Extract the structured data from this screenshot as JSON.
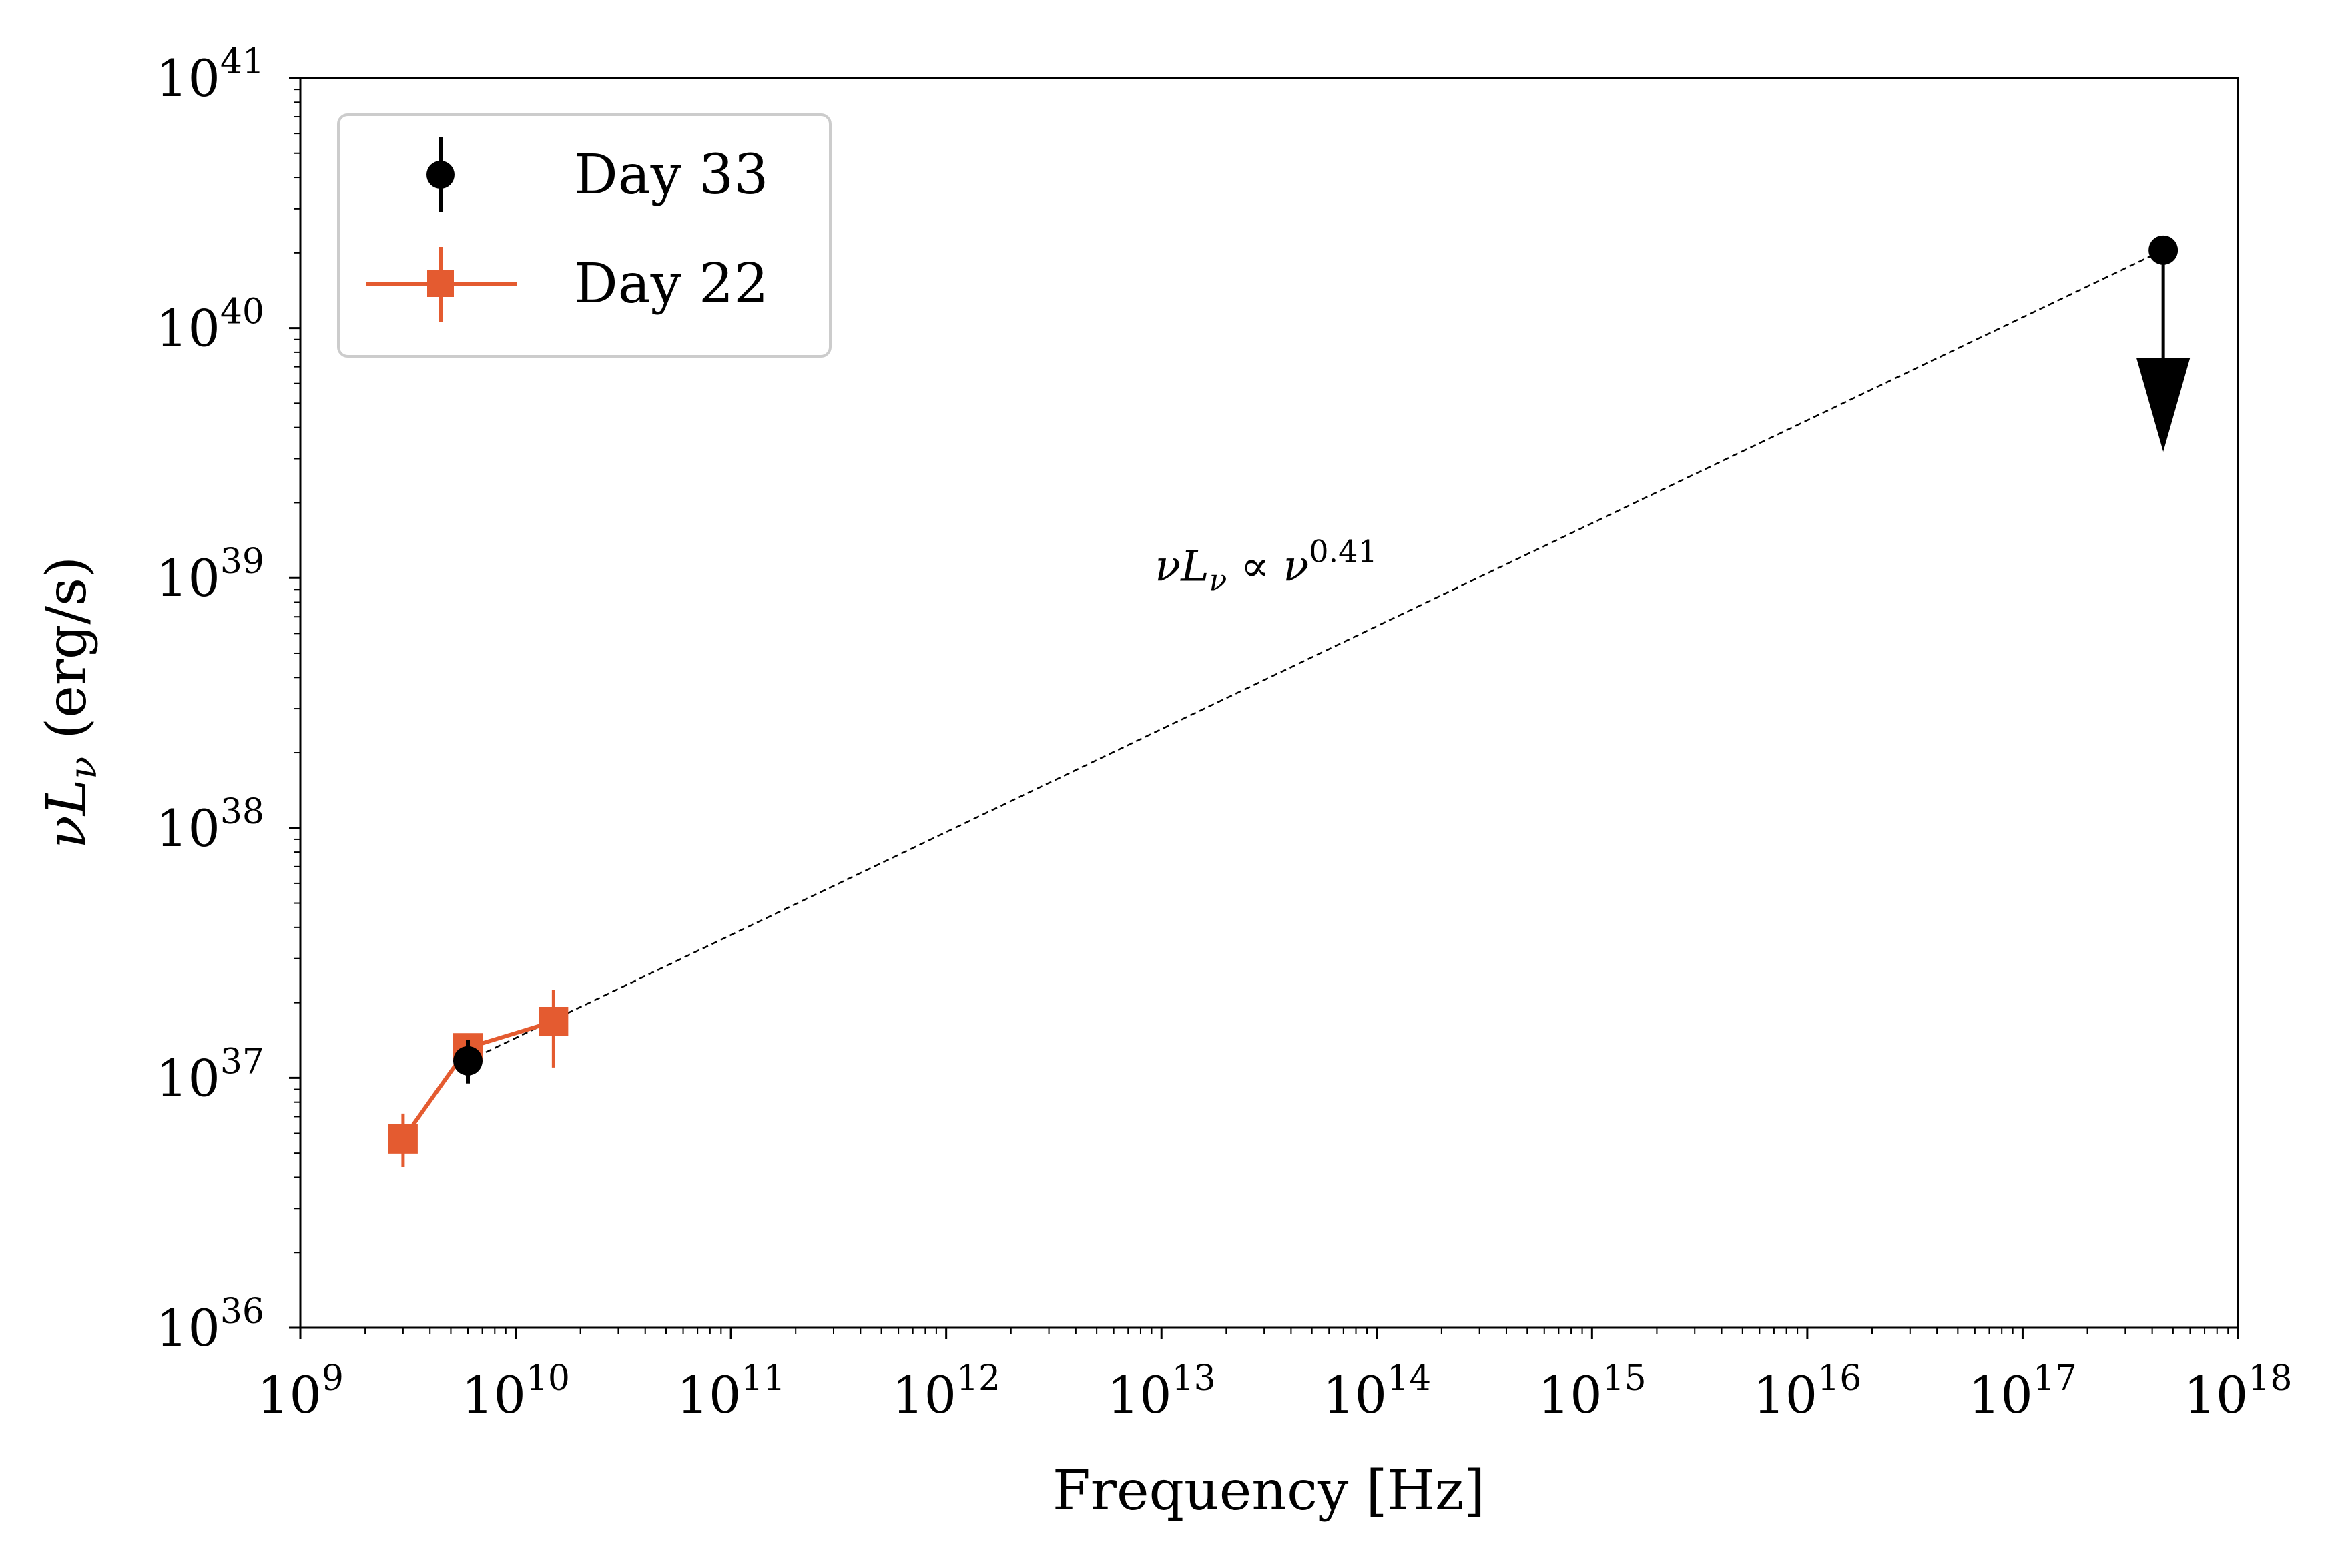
{
  "chart_data": {
    "type": "scatter",
    "xscale": "log",
    "yscale": "log",
    "xlim": [
      1000000000.0,
      1e+18
    ],
    "ylim": [
      1e+36,
      1e+41
    ],
    "xlabel": "Frequency [Hz]",
    "ylabel": {
      "symbol": "νL",
      "subscript": "ν",
      "unit": "(erg/s)"
    },
    "x_ticks": [
      {
        "base": "10",
        "exp": "9",
        "value": 1000000000.0
      },
      {
        "base": "10",
        "exp": "10",
        "value": 10000000000.0
      },
      {
        "base": "10",
        "exp": "11",
        "value": 100000000000.0
      },
      {
        "base": "10",
        "exp": "12",
        "value": 1000000000000.0
      },
      {
        "base": "10",
        "exp": "13",
        "value": 10000000000000.0
      },
      {
        "base": "10",
        "exp": "14",
        "value": 100000000000000.0
      },
      {
        "base": "10",
        "exp": "15",
        "value": 1000000000000000.0
      },
      {
        "base": "10",
        "exp": "16",
        "value": 1e+16
      },
      {
        "base": "10",
        "exp": "17",
        "value": 1e+17
      },
      {
        "base": "10",
        "exp": "18",
        "value": 1e+18
      }
    ],
    "y_ticks": [
      {
        "base": "10",
        "exp": "36",
        "value": 1e+36
      },
      {
        "base": "10",
        "exp": "37",
        "value": 1e+37
      },
      {
        "base": "10",
        "exp": "38",
        "value": 1e+38
      },
      {
        "base": "10",
        "exp": "39",
        "value": 1e+39
      },
      {
        "base": "10",
        "exp": "40",
        "value": 1e+40
      },
      {
        "base": "10",
        "exp": "41",
        "value": 1e+41
      }
    ],
    "series": [
      {
        "name": "Day 33",
        "color": "#000000",
        "marker": "circle",
        "line": false,
        "points": [
          {
            "x": 6000000000.0,
            "y": 1.17e+37,
            "ylo": 9.5e+36,
            "yhi": 1.42e+37
          },
          {
            "x": 4.5e+17,
            "y": 2.05e+40,
            "upper_limit": true,
            "arrow_to": 3.2e+39
          }
        ]
      },
      {
        "name": "Day 22",
        "color": "#e45b30",
        "marker": "square",
        "line": true,
        "points": [
          {
            "x": 3000000000.0,
            "y": 5.7e+36,
            "ylo": 4.4e+36,
            "yhi": 7.2e+36
          },
          {
            "x": 6000000000.0,
            "y": 1.32e+37,
            "ylo": 1.16e+37,
            "yhi": 1.5e+37
          },
          {
            "x": 15000000000.0,
            "y": 1.68e+37,
            "ylo": 1.1e+37,
            "yhi": 2.25e+37
          }
        ]
      }
    ],
    "fit_line": {
      "style": "dashed",
      "color": "#000000",
      "from": {
        "x": 6000000000.0,
        "y": 1.17e+37
      },
      "to": {
        "x": 4.5e+17,
        "y": 2.05e+40
      },
      "label": {
        "prefix": "νL",
        "sub": "ν",
        "rel": " ∝ ν",
        "power": "0.41"
      },
      "label_anchor": {
        "x": 10000000000000.0,
        "y": 1.05e+39
      }
    },
    "legend": {
      "position": "top-left",
      "entries": [
        "Day 33",
        "Day 22"
      ]
    },
    "grid": false
  }
}
